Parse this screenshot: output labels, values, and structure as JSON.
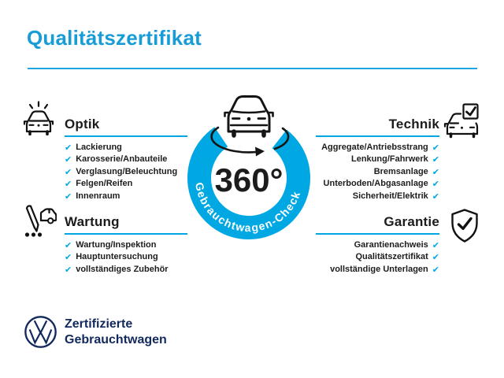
{
  "title": "Qualitätszertifikat",
  "colors": {
    "accent_blue": "#00A8E3",
    "title_blue": "#189CD8",
    "brand_navy": "#12295E",
    "text_dark": "#1d1d1b",
    "ring_text": "#ffffff"
  },
  "center": {
    "degree_label": "360°",
    "ring_label": "Gebrauchtwagen-Check"
  },
  "sections": {
    "optik": {
      "heading": "Optik",
      "items": [
        "Lackierung",
        "Karosserie/Anbauteile",
        "Verglasung/Beleuchtung",
        "Felgen/Reifen",
        "Innenraum"
      ]
    },
    "technik": {
      "heading": "Technik",
      "items": [
        "Aggregate/Antriebsstrang",
        "Lenkung/Fahrwerk",
        "Bremsanlage",
        "Unterboden/Abgasanlage",
        "Sicherheit/Elektrik"
      ]
    },
    "wartung": {
      "heading": "Wartung",
      "items": [
        "Wartung/Inspektion",
        "Hauptuntersuchung",
        "vollständiges Zubehör"
      ]
    },
    "garantie": {
      "heading": "Garantie",
      "items": [
        "Garantienachweis",
        "Qualitätszertifikat",
        "vollständige Unterlagen"
      ]
    }
  },
  "icons": {
    "check_glyph": "✔",
    "optik_icon": "car-shine-icon",
    "technik_icon": "car-checkbox-icon",
    "wartung_icon": "pen-car-icon",
    "garantie_icon": "shield-check-icon",
    "center_icon": "rotation-car-icon",
    "logo": "vw-logo"
  },
  "footer": {
    "brand_line1": "Zertifizierte",
    "brand_line2": "Gebrauchtwagen"
  }
}
